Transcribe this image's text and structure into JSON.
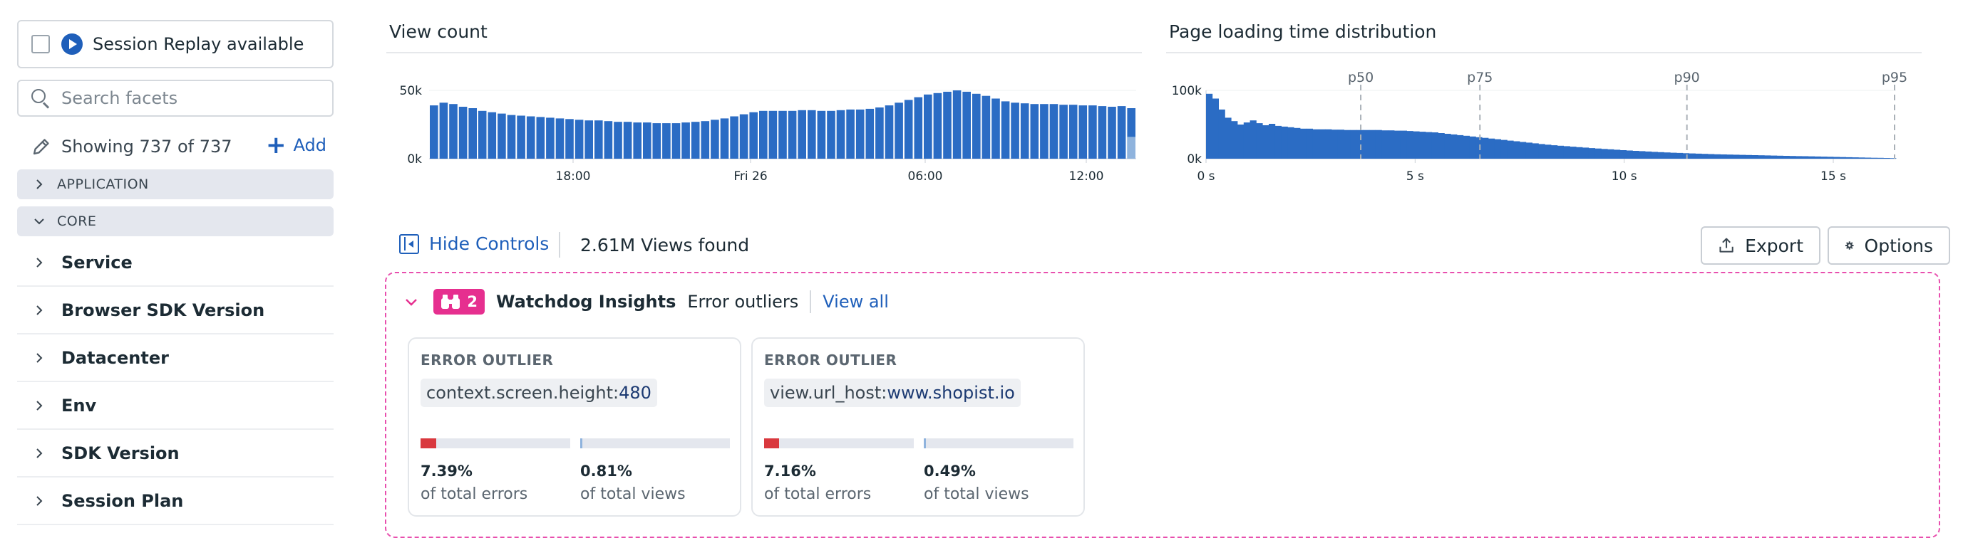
{
  "sidebar": {
    "session_replay_label": "Session Replay available",
    "search_placeholder": "Search facets",
    "showing_text": "Showing 737 of 737",
    "add_label": "Add",
    "groups": [
      {
        "label": "APPLICATION",
        "expanded": false
      },
      {
        "label": "CORE",
        "expanded": true
      }
    ],
    "facets": [
      "Service",
      "Browser SDK Version",
      "Datacenter",
      "Env",
      "SDK Version",
      "Session Plan"
    ]
  },
  "chart_data": [
    {
      "type": "bar",
      "title": "View count",
      "ylim": [
        0,
        50000
      ],
      "y_ticks": [
        "50k",
        "0k"
      ],
      "x_ticks": [
        "18:00",
        "Fri 26",
        "06:00",
        "12:00"
      ],
      "values": [
        39000,
        41000,
        40000,
        38000,
        37000,
        35000,
        34000,
        33000,
        32000,
        31500,
        31000,
        30500,
        30000,
        29500,
        29000,
        28500,
        28000,
        28000,
        27500,
        27000,
        27000,
        26500,
        26500,
        26000,
        26000,
        26000,
        26500,
        27000,
        27500,
        28500,
        29500,
        31000,
        32500,
        34000,
        35000,
        35000,
        35000,
        35000,
        35500,
        35500,
        35000,
        35000,
        35500,
        36000,
        36000,
        36500,
        37500,
        39000,
        41000,
        43000,
        45000,
        47000,
        48000,
        49000,
        50000,
        49000,
        47500,
        46000,
        44000,
        42000,
        41000,
        40500,
        40000,
        40000,
        40000,
        39500,
        39500,
        39000,
        39000,
        38500,
        38000,
        38500,
        37000
      ],
      "partial_last": 16000,
      "color": "#2b6cc4",
      "partial_color": "#8fb3dd"
    },
    {
      "type": "bar",
      "title": "Page loading time distribution",
      "ylim": [
        0,
        100000
      ],
      "y_ticks": [
        "100k",
        "0k"
      ],
      "x_ticks": [
        "0 s",
        "5 s",
        "10 s",
        "15 s"
      ],
      "xlim": [
        0,
        16.5
      ],
      "percentiles": [
        {
          "label": "p50",
          "value": 3.7
        },
        {
          "label": "p75",
          "value": 6.55
        },
        {
          "label": "p90",
          "value": 11.5
        },
        {
          "label": "p95",
          "value": 16.6
        }
      ],
      "values": [
        95000,
        88000,
        72000,
        60000,
        55000,
        50000,
        53000,
        56000,
        52000,
        49000,
        51000,
        48000,
        47000,
        46000,
        45000,
        44000,
        44000,
        43000,
        43000,
        43000,
        42500,
        42500,
        42000,
        42000,
        42000,
        42000,
        42000,
        42000,
        41500,
        41500,
        41000,
        41000,
        40500,
        40000,
        39500,
        39000,
        38500,
        37500,
        36500,
        35500,
        34500,
        33500,
        32500,
        31500,
        30500,
        29500,
        28500,
        27500,
        26500,
        25500,
        24500,
        23500,
        22500,
        21500,
        20500,
        19700,
        19000,
        18300,
        17600,
        16900,
        16200,
        15500,
        14900,
        14300,
        13700,
        13100,
        12500,
        12000,
        11500,
        11000,
        10500,
        10000,
        9600,
        9200,
        8800,
        8400,
        8000,
        7700,
        7400,
        7100,
        6800,
        6500,
        6200,
        6000,
        5800,
        5600,
        5400,
        5200,
        5000,
        4800,
        4600,
        4400,
        4200,
        4000,
        3800,
        3600,
        3400,
        3200,
        3000,
        2800,
        2600,
        2400,
        2200,
        2000,
        1800,
        1600,
        1400,
        1200,
        1000,
        800
      ],
      "color": "#2b6cc4"
    }
  ],
  "controls": {
    "hide_controls_label": "Hide Controls",
    "views_found": "2.61M Views found",
    "export_label": "Export",
    "options_label": "Options"
  },
  "watchdog": {
    "count": "2",
    "title": "Watchdog Insights",
    "subtitle": "Error outliers",
    "view_all": "View all",
    "accent_color": "#e62f8f",
    "cards": [
      {
        "kind": "ERROR OUTLIER",
        "tag_key": "context.screen.height:",
        "tag_value": "480",
        "errors_pct": "7.39%",
        "errors_label": "of total errors",
        "errors_fraction": 0.0739,
        "views_pct": "0.81%",
        "views_label": "of total views",
        "views_fraction": 0.0081
      },
      {
        "kind": "ERROR OUTLIER",
        "tag_key": "view.url_host:",
        "tag_value": "www.shopist.io",
        "errors_pct": "7.16%",
        "errors_label": "of total errors",
        "errors_fraction": 0.0716,
        "views_pct": "0.49%",
        "views_label": "of total views",
        "views_fraction": 0.0049
      }
    ]
  }
}
